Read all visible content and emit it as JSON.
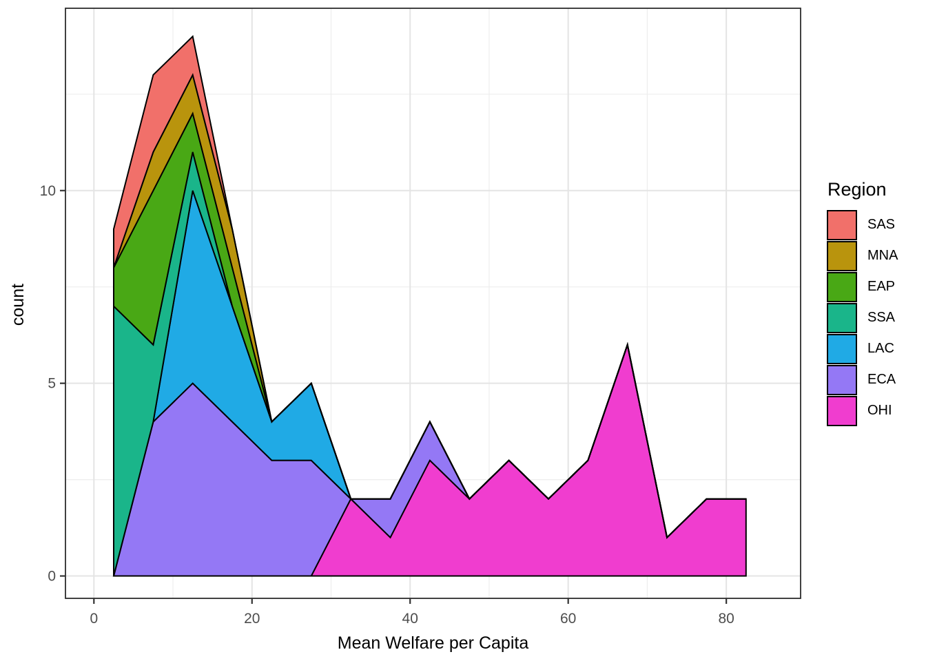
{
  "chart_data": {
    "type": "area",
    "stacked": true,
    "xlabel": "Mean Welfare per Capita",
    "ylabel": "count",
    "legend_title": "Region",
    "bin_width": 5,
    "x": [
      2.5,
      7.5,
      12.5,
      17.5,
      22.5,
      27.5,
      32.5,
      37.5,
      42.5,
      47.5,
      52.5,
      57.5,
      62.5,
      67.5,
      72.5,
      77.5,
      82.5
    ],
    "series": [
      {
        "name": "SAS",
        "color": "#F1706A",
        "values": [
          1,
          2,
          1,
          0,
          0,
          0,
          0,
          0,
          0,
          0,
          0,
          0,
          0,
          0,
          0,
          0,
          0
        ]
      },
      {
        "name": "MNA",
        "color": "#B9940D",
        "values": [
          0,
          1,
          1,
          1,
          0,
          0,
          0,
          0,
          0,
          0,
          0,
          0,
          0,
          0,
          0,
          0,
          0
        ]
      },
      {
        "name": "EAP",
        "color": "#49A815",
        "values": [
          1,
          4,
          1,
          1,
          0,
          0,
          0,
          0,
          0,
          0,
          0,
          0,
          0,
          0,
          0,
          0,
          0
        ]
      },
      {
        "name": "SSA",
        "color": "#1AB58A",
        "values": [
          7,
          2,
          1,
          0,
          0,
          0,
          0,
          0,
          0,
          0,
          0,
          0,
          0,
          0,
          0,
          0,
          0
        ]
      },
      {
        "name": "LAC",
        "color": "#20AAE5",
        "values": [
          0,
          0,
          5,
          3,
          1,
          2,
          0,
          0,
          0,
          0,
          0,
          0,
          0,
          0,
          0,
          0,
          0
        ]
      },
      {
        "name": "ECA",
        "color": "#9478F5",
        "values": [
          0,
          4,
          5,
          4,
          3,
          3,
          0,
          1,
          1,
          0,
          0,
          0,
          0,
          0,
          0,
          0,
          0
        ]
      },
      {
        "name": "OHI",
        "color": "#F03DCF",
        "values": [
          0,
          0,
          0,
          0,
          0,
          0,
          2,
          1,
          3,
          2,
          3,
          2,
          3,
          6,
          1,
          2,
          2
        ]
      }
    ],
    "stack_order_bottom_to_top": [
      "OHI",
      "ECA",
      "LAC",
      "SSA",
      "EAP",
      "MNA",
      "SAS"
    ],
    "x_ticks": [
      0,
      20,
      40,
      60,
      80
    ],
    "y_ticks": [
      0,
      5,
      10
    ],
    "x_minor_gridlines": [
      10,
      30,
      50,
      70
    ],
    "y_minor_gridlines": [
      2.5,
      7.5,
      12.5
    ],
    "xlim": [
      -3.6,
      89.4
    ],
    "ylim": [
      -0.58,
      14.73
    ],
    "grid": "on",
    "legend_position": "right",
    "outline_color": "#000000",
    "major_grid_color": "#E4E4E4",
    "minor_grid_color": "#EDEDED",
    "panel_border_color": "#2b2b2b",
    "tick_color": "#333333",
    "tick_label_color": "#4d4d4d"
  }
}
